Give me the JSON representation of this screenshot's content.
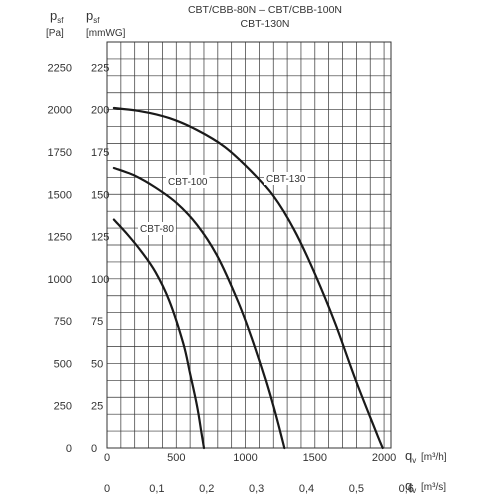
{
  "chart_data": {
    "type": "line",
    "title_lines": [
      "CBT/CBB-80N  –  CBT/CBB-100N",
      "CBT-130N"
    ],
    "axes": {
      "y_left": {
        "symbol": "p",
        "subscript": "sf",
        "unit": "[Pa]",
        "ticks": [
          "2250",
          "2000",
          "1750",
          "1500",
          "1250",
          "1000",
          "750",
          "500",
          "250",
          "0"
        ],
        "range": [
          0,
          2400
        ]
      },
      "y_right": {
        "symbol": "p",
        "subscript": "sf",
        "unit": "[mmWG]",
        "ticks": [
          "225",
          "200",
          "175",
          "150",
          "125",
          "100",
          "75",
          "50",
          "25",
          "0"
        ]
      },
      "x_top": {
        "symbol": "q",
        "subscript": "v",
        "unit": "[m³/h]",
        "ticks": [
          "0",
          "500",
          "1000",
          "1500",
          "2000"
        ],
        "range": [
          0,
          2050
        ]
      },
      "x_bottom": {
        "symbol": "q",
        "subscript": "v",
        "unit": "[m³/s]",
        "ticks": [
          "0",
          "0,1",
          "0,2",
          "0,3",
          "0,4",
          "0,5",
          "0,6"
        ]
      }
    },
    "grid": true,
    "series": [
      {
        "name": "CBT-80",
        "x": [
          50,
          150,
          250,
          350,
          450,
          550,
          600,
          650,
          680,
          700
        ],
        "y": [
          1350,
          1260,
          1160,
          1040,
          870,
          620,
          440,
          250,
          100,
          0
        ]
      },
      {
        "name": "CBT-100",
        "x": [
          50,
          200,
          350,
          500,
          650,
          800,
          950,
          1050,
          1150,
          1220,
          1280
        ],
        "y": [
          1655,
          1610,
          1540,
          1450,
          1320,
          1130,
          860,
          640,
          390,
          190,
          0
        ]
      },
      {
        "name": "CBT-130",
        "x": [
          50,
          250,
          450,
          650,
          850,
          1050,
          1200,
          1350,
          1500,
          1650,
          1800,
          1950,
          1990
        ],
        "y": [
          2010,
          1990,
          1950,
          1880,
          1780,
          1630,
          1490,
          1290,
          1030,
          730,
          390,
          80,
          0
        ]
      }
    ]
  },
  "colors": {
    "curve": "#1a1a1a",
    "grid": "#333333",
    "text": "#333333",
    "background": "#ffffff"
  }
}
